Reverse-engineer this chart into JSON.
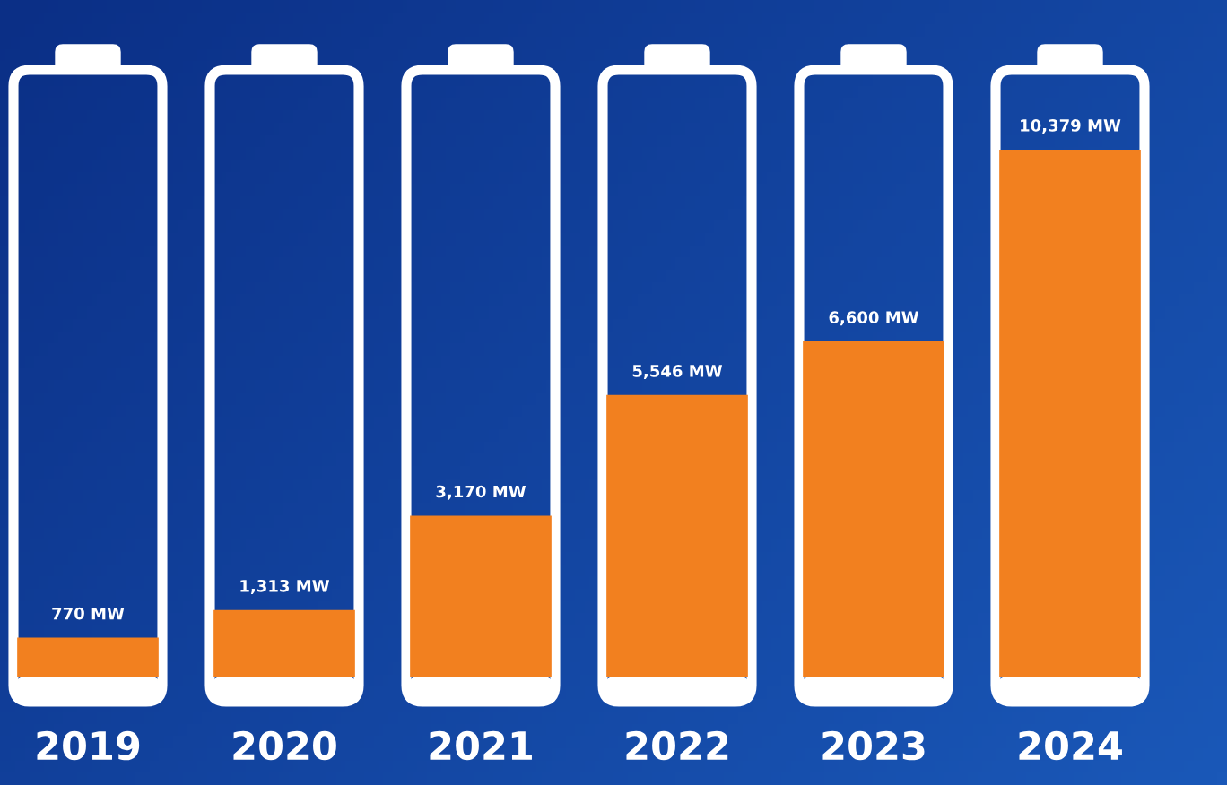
{
  "chart_data": {
    "type": "bar",
    "categories": [
      "2019",
      "2020",
      "2021",
      "2022",
      "2023",
      "2024"
    ],
    "values": [
      770,
      1313,
      3170,
      5546,
      6600,
      10379
    ],
    "color": "#f2801f",
    "value_labels": [
      "770 MW",
      "1,313 MW",
      "3,170 MW",
      "5,546 MW",
      "6,600 MW",
      "10,379 MW"
    ],
    "grid": false
  }
}
